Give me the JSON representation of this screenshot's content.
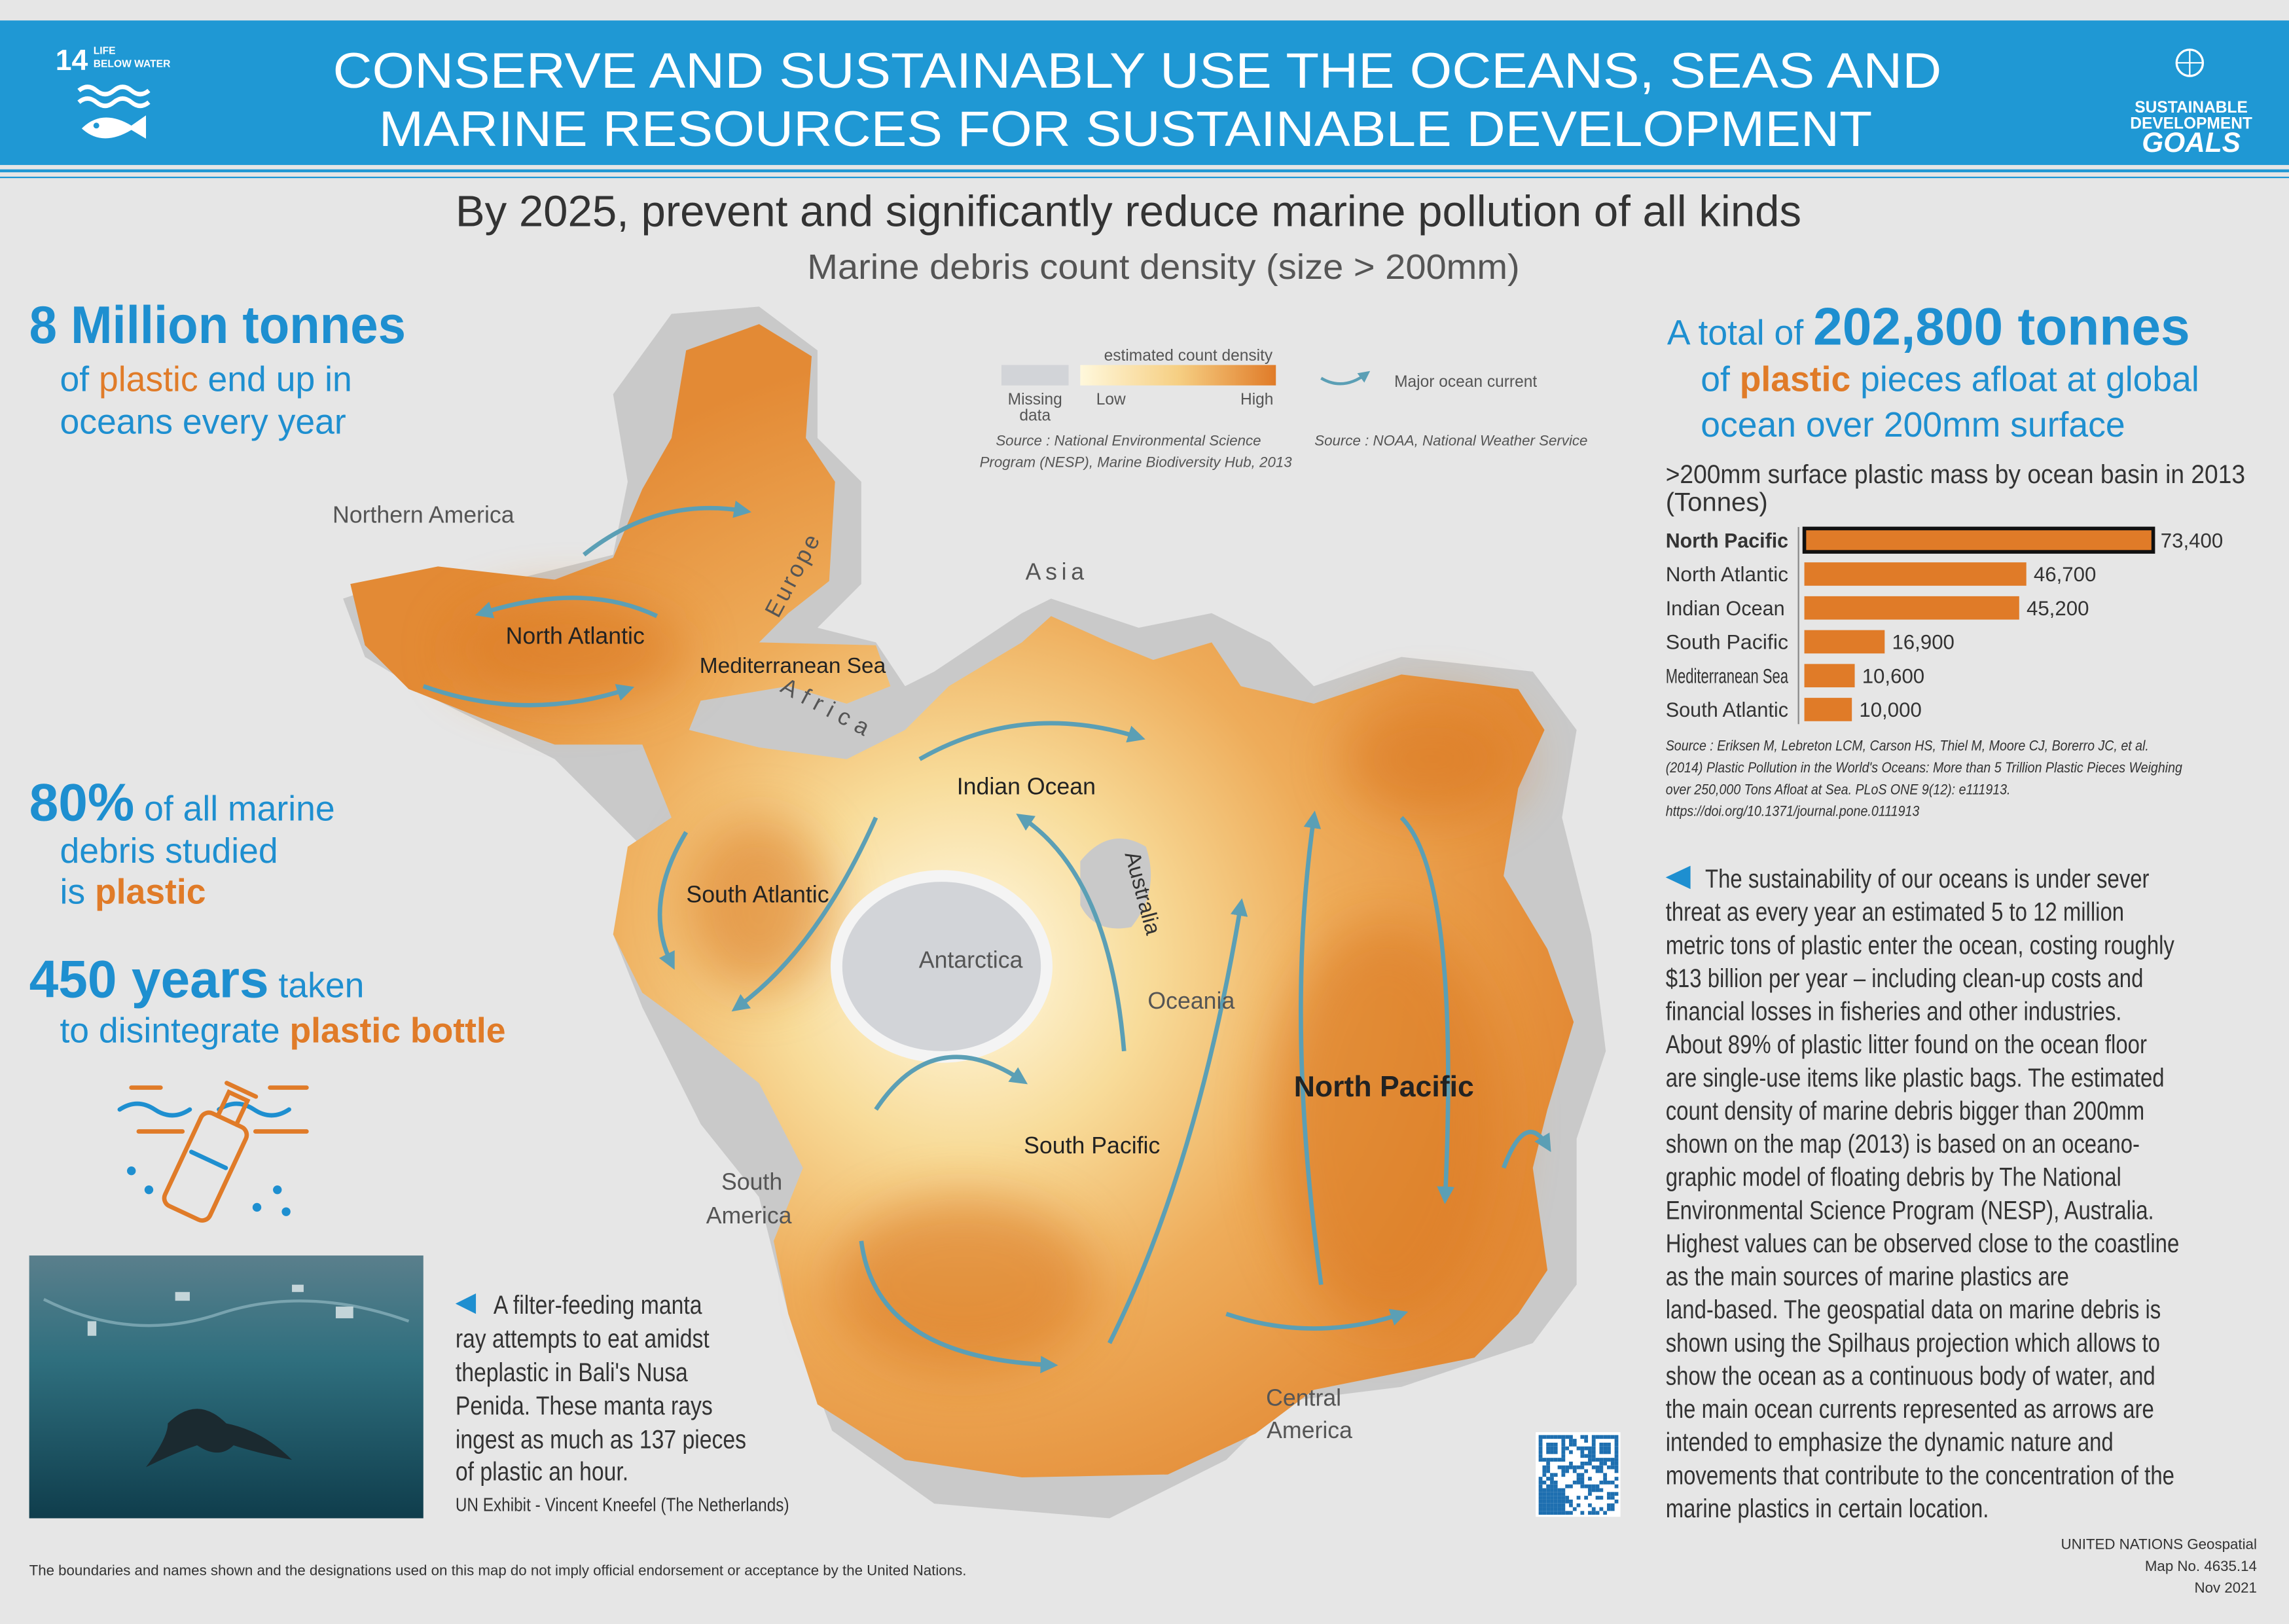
{
  "header": {
    "goal_number": "14",
    "goal_name": [
      "LIFE",
      "BELOW WATER"
    ],
    "title_line1": "CONSERVE AND SUSTAINABLY USE THE OCEANS, SEAS AND",
    "title_line2": "MARINE RESOURCES FOR SUSTAINABLE DEVELOPMENT",
    "sdg_logo": [
      "SUSTAINABLE",
      "DEVELOPMENT",
      "GOALS"
    ]
  },
  "subtitle": "By 2025, prevent and significantly reduce marine pollution of all kinds",
  "map": {
    "title": "Marine debris count density (size > 200mm)",
    "legend": {
      "density_title": "estimated count density",
      "missing_data": [
        "Missing",
        "data"
      ],
      "low": "Low",
      "high": "High",
      "current": "Major ocean current",
      "source_density": [
        "Source : National Environmental Science",
        "Program (NESP), Marine Biodiversity Hub, 2013"
      ],
      "source_current": "Source : NOAA, National Weather Service"
    },
    "labels": {
      "northern_america": "Northern America",
      "north_atlantic": "North Atlantic",
      "europe": "Europe",
      "mediterranean": "Mediterranean Sea",
      "africa": "Africa",
      "asia": "Asia",
      "indian_ocean": "Indian Ocean",
      "south_atlantic": "South Atlantic",
      "australia": "Australia",
      "antarctica": "Antarctica",
      "oceania": "Oceania",
      "north_pacific": "North Pacific",
      "south_pacific": "South Pacific",
      "south_america": [
        "South",
        "America"
      ],
      "central_america": [
        "Central",
        "America"
      ]
    }
  },
  "facts": [
    {
      "headline": "8 Million tonnes",
      "lines": [
        [
          "of",
          "plastic",
          "end up in"
        ],
        [
          "oceans every year"
        ]
      ]
    },
    {
      "headline": "80%",
      "headline_rest": "of all marine",
      "lines": [
        [
          "debris studied"
        ],
        [
          "is",
          "plastic"
        ]
      ]
    },
    {
      "headline": "450 years",
      "headline_rest": "taken",
      "lines": [
        [
          "to disintegrate",
          "plastic bottle"
        ]
      ]
    }
  ],
  "total": {
    "prefix": "A total of",
    "headline": "202,800 tonnes",
    "lines": [
      [
        "of",
        "plastic",
        "pieces afloat at global"
      ],
      [
        "ocean over 200mm surface"
      ]
    ]
  },
  "chart_data": {
    "type": "bar",
    "orientation": "horizontal",
    "title": [
      ">200mm surface plastic mass by ocean basin in 2013",
      "(Tonnes)"
    ],
    "categories": [
      "North Pacific",
      "North Atlantic",
      "Indian Ocean",
      "South Pacific",
      "Mediterranean Sea",
      "South Atlantic"
    ],
    "values": [
      73400,
      46700,
      45200,
      16900,
      10600,
      10000
    ],
    "value_labels": [
      "73,400",
      "46,700",
      "45,200",
      "16,900",
      "10,600",
      "10,000"
    ],
    "color": "#e07b28",
    "highlight": "North Pacific",
    "source": [
      "Source : Eriksen M, Lebreton LCM, Carson HS, Thiel M, Moore CJ, Borerro JC, et al.",
      "(2014) Plastic Pollution in the World's Oceans: More than 5 Trillion Plastic Pieces Weighing",
      "over 250,000 Tons Afloat at Sea. PLoS ONE 9(12): e111913.",
      "https://doi.org/10.1371/journal.pone.0111913"
    ]
  },
  "description": [
    "The sustainability of our oceans is under sever",
    "threat as every year an estimated 5 to 12 million",
    "metric tons of plastic enter the ocean, costing roughly",
    "$13 billion per year – including clean-up costs and",
    "financial losses in fisheries and other industries.",
    "About 89% of plastic litter found on the ocean floor",
    "are single-use items like plastic bags. The estimated",
    "count density of marine debris bigger than 200mm",
    "shown on the map (2013) is based on an oceano-",
    "graphic model of floating debris by The National",
    "Environmental Science Program (NESP), Australia.",
    "Highest values can be observed close to the coastline",
    "as the main sources of marine plastics are",
    "land-based. The geospatial data on marine debris is",
    "shown using the Spilhaus projection which allows to",
    "show the ocean as a continuous body of water, and",
    "the main ocean currents represented as arrows are",
    "intended to emphasize the dynamic nature and",
    "movements that contribute to the concentration of the",
    "marine plastics in certain location."
  ],
  "photo_caption": [
    "A filter-feeding manta",
    "ray attempts to eat amidst",
    "theplastic in Bali's Nusa",
    "Penida. These manta rays",
    "ingest as much as 137 pieces",
    "of plastic an hour."
  ],
  "photo_credit": "UN Exhibit - Vincent Kneefel (The Netherlands)",
  "disclaimer": "The boundaries and names shown and the designations used on this map do not imply official endorsement or acceptance by the United Nations.",
  "map_info": [
    "UNITED NATIONS Geospatial",
    "Map No. 4635.14",
    "Nov 2021"
  ]
}
